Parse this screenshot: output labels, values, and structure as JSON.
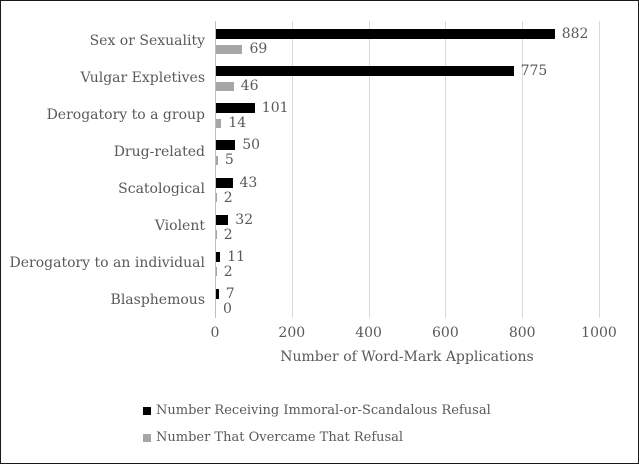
{
  "chart_data": {
    "type": "bar",
    "orientation": "horizontal",
    "title": "",
    "categories": [
      "Sex or Sexuality",
      "Vulgar Expletives",
      "Derogatory to a group",
      "Drug-related",
      "Scatological",
      "Violent",
      "Derogatory to an individual",
      "Blasphemous"
    ],
    "series": [
      {
        "name": "Number Receiving Immoral-or-Scandalous Refusal",
        "color": "#000000",
        "values": [
          882,
          775,
          101,
          50,
          43,
          32,
          11,
          7
        ]
      },
      {
        "name": "Number That Overcame That Refusal",
        "color": "#a6a6a6",
        "values": [
          69,
          46,
          14,
          5,
          2,
          2,
          2,
          0
        ]
      }
    ],
    "xlabel": "Number of Word-Mark Applications",
    "x_ticks": [
      "0",
      "200",
      "400",
      "600",
      "800",
      "1000"
    ],
    "x_tick_values": [
      0,
      200,
      400,
      600,
      800,
      1000
    ],
    "xlim": [
      0,
      1000
    ],
    "grid": "vertical",
    "data_labels": true,
    "legend_position": "bottom-left"
  },
  "colors": {
    "text": "#595959",
    "gridline": "#d9d9d9",
    "axis_line": "#bfbfbf",
    "background": "#ffffff"
  }
}
